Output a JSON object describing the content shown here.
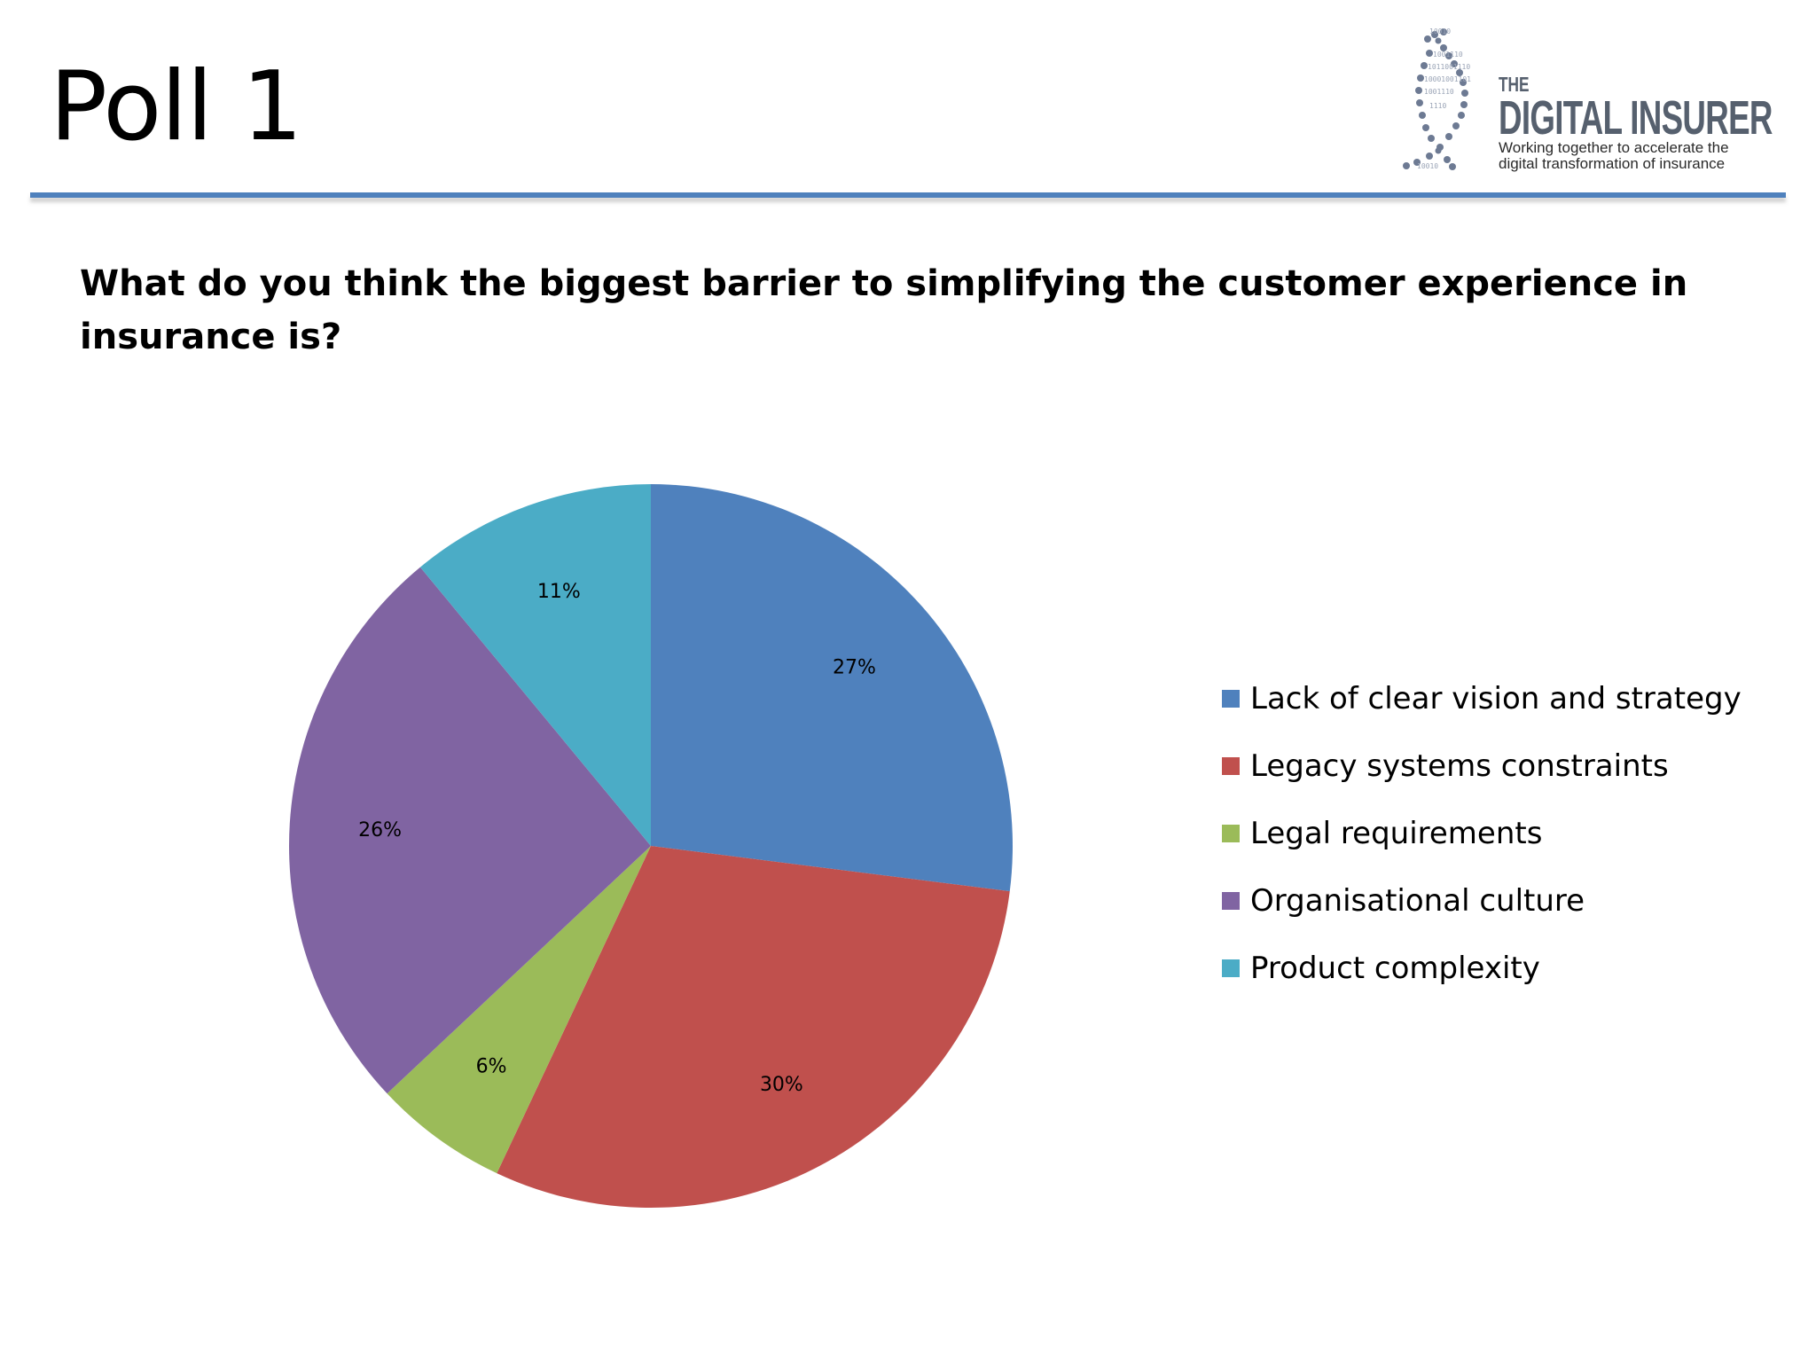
{
  "slide": {
    "title": "Poll 1",
    "question": "What do you think the biggest barrier to simplifying the customer experience in insurance is?"
  },
  "logo": {
    "brand_small": "THE",
    "brand_big": "DIGITAL INSURER",
    "tagline_line1": "Working together to accelerate the",
    "tagline_line2": "digital transformation of insurance",
    "color": "#56606e"
  },
  "chart_data": {
    "type": "pie",
    "title": "",
    "legend_position": "right",
    "categories": [
      "Lack of clear vision and strategy",
      "Legacy systems constraints",
      "Legal requirements",
      "Organisational culture",
      "Product complexity"
    ],
    "values": [
      27,
      30,
      6,
      26,
      11
    ],
    "labels": [
      "27%",
      "30%",
      "6%",
      "26%",
      "11%"
    ],
    "colors": [
      "#4f81bd",
      "#c0504d",
      "#9bbb59",
      "#8064a2",
      "#4bacc6"
    ]
  }
}
